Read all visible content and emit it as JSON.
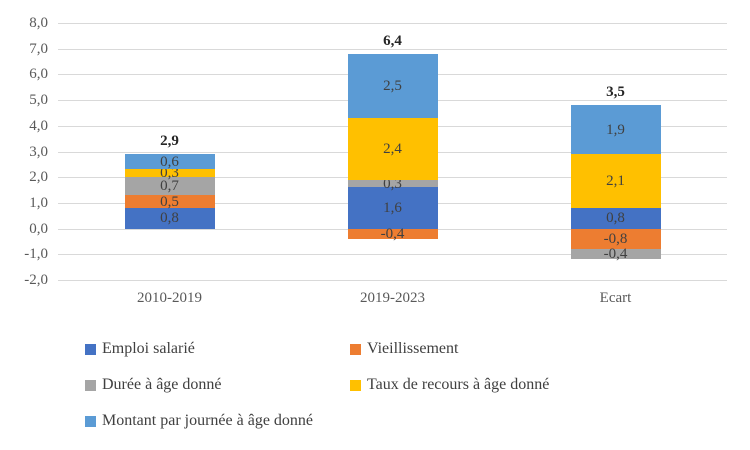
{
  "chart_data": {
    "type": "bar",
    "stacked": true,
    "title": "",
    "categories": [
      "2010-2019",
      "2019-2023",
      "Ecart"
    ],
    "series": [
      {
        "name": "Emploi salarié",
        "color": "#4472C4",
        "values": [
          0.8,
          1.6,
          0.8
        ],
        "labels": [
          "0,8",
          "1,6",
          "0,8"
        ]
      },
      {
        "name": "Vieillissement",
        "color": "#ED7D31",
        "values": [
          0.5,
          -0.4,
          -0.8
        ],
        "labels": [
          "0,5",
          "-0,4",
          "-0,8"
        ]
      },
      {
        "name": "Durée à âge donné",
        "color": "#A5A5A5",
        "values": [
          0.7,
          0.3,
          -0.4
        ],
        "labels": [
          "0,7",
          "0,3",
          "-0,4"
        ]
      },
      {
        "name": "Taux de recours à âge donné",
        "color": "#FFC000",
        "values": [
          0.3,
          2.4,
          2.1
        ],
        "labels": [
          "0,3",
          "2,4",
          "2,1"
        ]
      },
      {
        "name": "Montant par journée à âge donné",
        "color": "#5B9BD5",
        "values": [
          0.6,
          2.5,
          1.9
        ],
        "labels": [
          "0,6",
          "2,5",
          "1,9"
        ]
      }
    ],
    "totals": {
      "values": [
        2.9,
        6.4,
        3.5
      ],
      "labels": [
        "2,9",
        "6,4",
        "3,5"
      ]
    },
    "y_axis": {
      "min": -2,
      "max": 8,
      "step": 1,
      "tick_labels": [
        "8,0",
        "7,0",
        "6,0",
        "5,0",
        "4,0",
        "3,0",
        "2,0",
        "1,0",
        "0,0",
        "-1,0",
        "-2,0"
      ]
    },
    "grid": true,
    "legend_position": "bottom-left-two-columns",
    "colors": {
      "gridline": "#D9D9D9",
      "axis_text": "#595959",
      "segment_label_text": "#404040",
      "total_label_text": "#262626",
      "background": "#FFFFFF"
    }
  }
}
